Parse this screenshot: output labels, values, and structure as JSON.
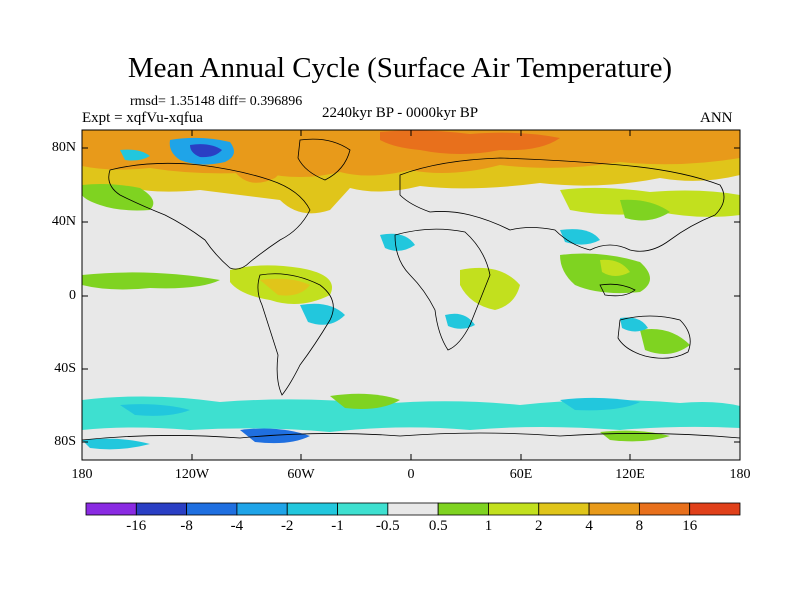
{
  "title": "Mean Annual Cycle (Surface Air Temperature)",
  "stats": "rmsd= 1.35148 diff= 0.396896",
  "experiment": "Expt = xqfVu-xqfua",
  "period": "2240kyr BP - 0000kyr BP",
  "season": "ANN",
  "map": {
    "lat_ticks": [
      "80N",
      "40N",
      "0",
      "40S",
      "80S"
    ],
    "lon_ticks": [
      "180",
      "120W",
      "60W",
      "0",
      "60E",
      "120E",
      "180"
    ]
  },
  "colorbar": {
    "labels": [
      "-16",
      "-8",
      "-4",
      "-2",
      "-1",
      "-0.5",
      "0.5",
      "1",
      "2",
      "4",
      "8",
      "16"
    ],
    "colors": [
      "#8a2be2",
      "#2a3fc4",
      "#1f6fe0",
      "#1fa4e8",
      "#22c7dd",
      "#3ee0d0",
      "#e8e8e8",
      "#7fd321",
      "#c2e01e",
      "#e0c51a",
      "#e89a1a",
      "#e8701c",
      "#e0401a"
    ]
  }
}
